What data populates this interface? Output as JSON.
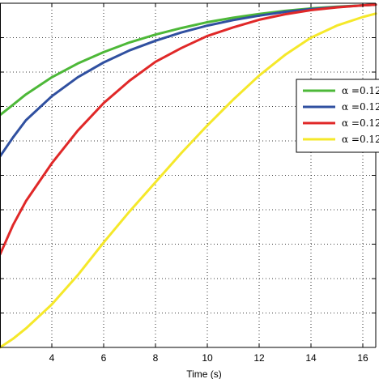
{
  "chart_data": {
    "type": "line",
    "title": "",
    "xlabel": "Time (s)",
    "ylabel": "",
    "xlim": [
      2,
      16.5
    ],
    "ylim": [
      0,
      1
    ],
    "x_ticks": [
      4,
      6,
      8,
      10,
      12,
      14,
      16
    ],
    "grid": true,
    "legend_position": "right",
    "series": [
      {
        "name": "α =0.12",
        "color": "#4db838",
        "x": [
          2.0,
          2.5,
          3.0,
          4.0,
          5.0,
          6.0,
          7.0,
          8.0,
          9.0,
          10.0,
          11.0,
          12.0,
          13.0,
          14.0,
          15.0,
          16.0,
          16.5
        ],
        "y": [
          0.675,
          0.705,
          0.735,
          0.785,
          0.825,
          0.858,
          0.886,
          0.909,
          0.928,
          0.945,
          0.958,
          0.969,
          0.978,
          0.985,
          0.99,
          0.994,
          0.996
        ]
      },
      {
        "name": "α =0.12",
        "color": "#3050a0",
        "x": [
          2.0,
          2.5,
          3.0,
          4.0,
          5.0,
          6.0,
          7.0,
          8.0,
          9.0,
          10.0,
          11.0,
          12.0,
          13.0,
          14.0,
          15.0,
          16.0,
          16.5
        ],
        "y": [
          0.555,
          0.61,
          0.66,
          0.73,
          0.785,
          0.828,
          0.863,
          0.891,
          0.915,
          0.935,
          0.951,
          0.964,
          0.975,
          0.983,
          0.989,
          0.994,
          0.996
        ]
      },
      {
        "name": "α =0.12",
        "color": "#e02828",
        "x": [
          2.0,
          2.5,
          3.0,
          4.0,
          5.0,
          6.0,
          7.0,
          8.0,
          9.0,
          10.0,
          11.0,
          12.0,
          13.0,
          14.0,
          15.0,
          16.0,
          16.5
        ],
        "y": [
          0.27,
          0.355,
          0.425,
          0.535,
          0.63,
          0.71,
          0.775,
          0.83,
          0.87,
          0.905,
          0.93,
          0.952,
          0.968,
          0.98,
          0.988,
          0.994,
          0.996
        ]
      },
      {
        "name": "α =0.12",
        "color": "#f5e82a",
        "x": [
          2.0,
          2.5,
          3.0,
          4.0,
          5.0,
          6.0,
          7.0,
          8.0,
          9.0,
          10.0,
          11.0,
          12.0,
          13.0,
          14.0,
          15.0,
          16.0,
          16.5
        ],
        "y": [
          0.0,
          0.025,
          0.055,
          0.125,
          0.21,
          0.305,
          0.395,
          0.48,
          0.565,
          0.645,
          0.72,
          0.79,
          0.85,
          0.9,
          0.935,
          0.96,
          0.97
        ]
      }
    ]
  }
}
